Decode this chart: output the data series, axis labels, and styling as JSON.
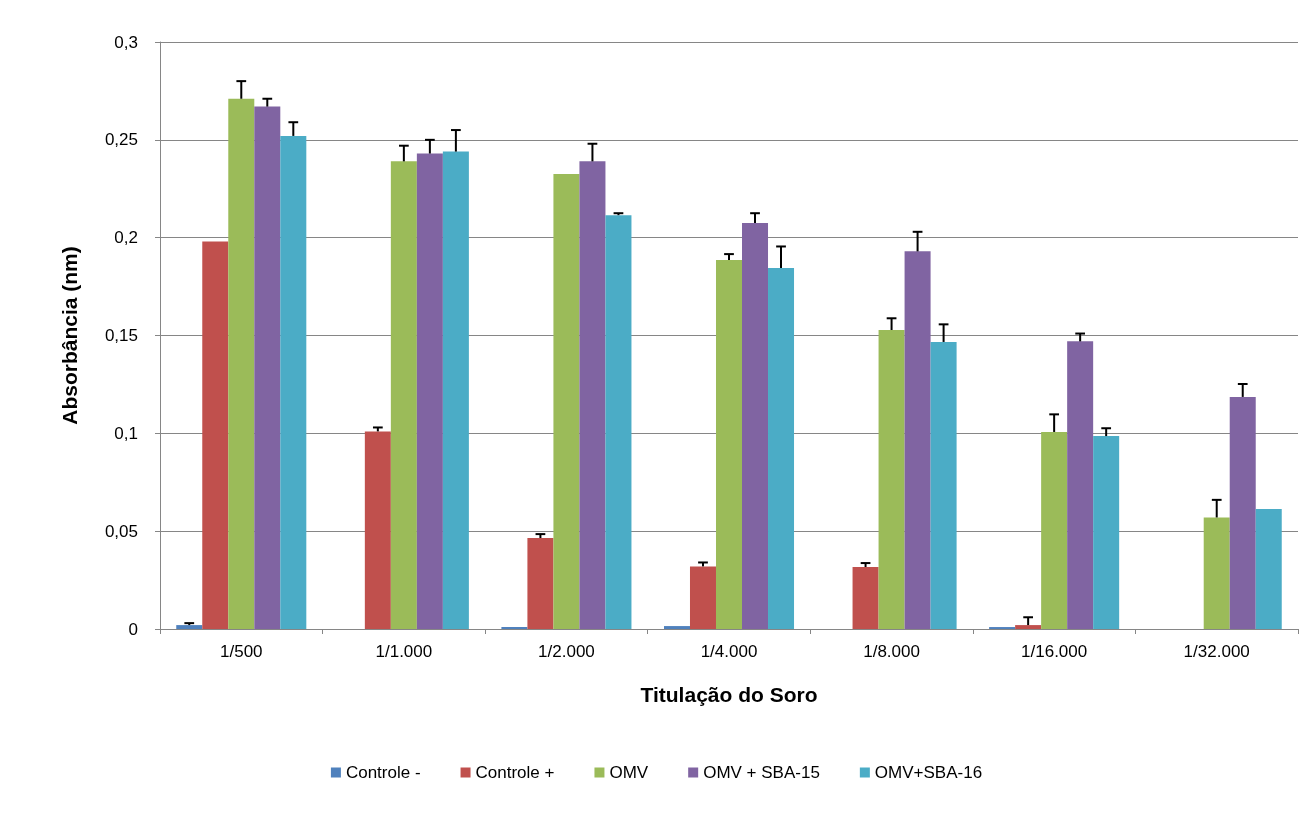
{
  "chart_data": {
    "type": "bar",
    "xlabel": "Titulação do Soro",
    "ylabel": "Absorbância (nm)",
    "categories": [
      "1/500",
      "1/1.000",
      "1/2.000",
      "1/4.000",
      "1/8.000",
      "1/16.000",
      "1/32.000"
    ],
    "series": [
      {
        "name": "Controle -",
        "color": "#4f81bd",
        "values": [
          0.002,
          0,
          0.001,
          0.0015,
          0,
          0.001,
          0
        ],
        "errors": [
          [
            0.002,
            0.003
          ],
          null,
          null,
          null,
          null,
          null,
          null
        ]
      },
      {
        "name": "Controle +",
        "color": "#c0504d",
        "values": [
          0.198,
          0.101,
          0.0465,
          0.032,
          0.0317,
          0.002,
          0
        ],
        "errors": [
          null,
          [
            0.101,
            0.103
          ],
          [
            0.0465,
            0.0485
          ],
          [
            0.032,
            0.034
          ],
          [
            0.0317,
            0.0337
          ],
          [
            0.002,
            0.006
          ],
          null
        ]
      },
      {
        "name": "OMV",
        "color": "#9bbb59",
        "values": [
          0.271,
          0.239,
          0.2325,
          0.1886,
          0.1528,
          0.1007,
          0.057
        ],
        "errors": [
          [
            0.271,
            0.28
          ],
          [
            0.239,
            0.247
          ],
          null,
          [
            0.1886,
            0.1916
          ],
          [
            0.1528,
            0.1588
          ],
          [
            0.1007,
            0.1097
          ],
          [
            0.057,
            0.066
          ]
        ]
      },
      {
        "name": "OMV + SBA-15",
        "color": "#8064a2",
        "values": [
          0.267,
          0.243,
          0.239,
          0.2075,
          0.193,
          0.147,
          0.1186
        ],
        "errors": [
          [
            0.267,
            0.271
          ],
          [
            0.243,
            0.25
          ],
          [
            0.239,
            0.248
          ],
          [
            0.2075,
            0.2125
          ],
          [
            0.193,
            0.203
          ],
          [
            0.147,
            0.151
          ],
          [
            0.1186,
            0.1252
          ]
        ]
      },
      {
        "name": "OMV+SBA-16",
        "color": "#4bacc6",
        "values": [
          0.252,
          0.244,
          0.2115,
          0.1845,
          0.1467,
          0.0986,
          0.0613
        ],
        "errors": [
          [
            0.252,
            0.259
          ],
          [
            0.244,
            0.255
          ],
          [
            0.2115,
            0.2125
          ],
          [
            0.1845,
            0.1955
          ],
          [
            0.1467,
            0.1557
          ],
          [
            0.0986,
            0.1026
          ],
          null
        ]
      }
    ],
    "ylim": [
      0,
      0.3
    ],
    "yticks": [
      {
        "value": 0,
        "label": "0"
      },
      {
        "value": 0.05,
        "label": "0,05"
      },
      {
        "value": 0.1,
        "label": "0,1"
      },
      {
        "value": 0.15,
        "label": "0,15"
      },
      {
        "value": 0.2,
        "label": "0,2"
      },
      {
        "value": 0.25,
        "label": "0,25"
      },
      {
        "value": 0.3,
        "label": "0,3"
      }
    ],
    "grid": "y",
    "legend": "bottom"
  }
}
